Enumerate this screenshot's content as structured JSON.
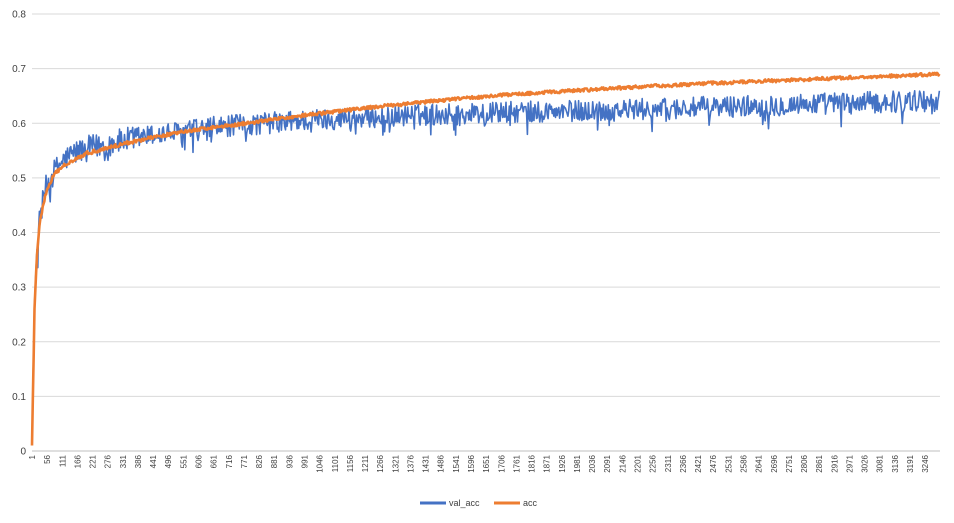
{
  "chart_data": {
    "type": "line",
    "title": "",
    "xlabel": "",
    "ylabel": "",
    "ylim": [
      0,
      0.8
    ],
    "yticks": [
      "0",
      "0.1",
      "0.2",
      "0.3",
      "0.4",
      "0.5",
      "0.6",
      "0.7",
      "0.8"
    ],
    "x_range": [
      1,
      3300
    ],
    "x_tick_start": 1,
    "x_tick_step": 55,
    "grid": "horizontal",
    "legend_position": "bottom",
    "series": [
      {
        "name": "val_acc",
        "color": "#4472C4",
        "x": [
          1,
          5,
          10,
          20,
          30,
          50,
          80,
          110,
          150,
          200,
          260,
          330,
          400,
          480,
          560,
          650,
          750,
          850,
          950,
          1050,
          1150,
          1250,
          1350,
          1450,
          1550,
          1650,
          1750,
          1850,
          1950,
          2050,
          2150,
          2250,
          2350,
          2450,
          2550,
          2650,
          2750,
          2850,
          2950,
          3050,
          3150,
          3250,
          3300
        ],
        "values": [
          0.01,
          0.14,
          0.27,
          0.38,
          0.43,
          0.48,
          0.51,
          0.53,
          0.545,
          0.555,
          0.56,
          0.568,
          0.575,
          0.58,
          0.585,
          0.592,
          0.596,
          0.6,
          0.604,
          0.607,
          0.61,
          0.612,
          0.614,
          0.616,
          0.617,
          0.619,
          0.62,
          0.621,
          0.622,
          0.623,
          0.624,
          0.626,
          0.627,
          0.629,
          0.631,
          0.632,
          0.634,
          0.636,
          0.637,
          0.638,
          0.64,
          0.641,
          0.642
        ],
        "noise_amplitude": 0.02
      },
      {
        "name": "acc",
        "color": "#ED7D31",
        "x": [
          1,
          5,
          10,
          20,
          30,
          50,
          80,
          110,
          150,
          200,
          260,
          330,
          400,
          480,
          560,
          650,
          750,
          850,
          950,
          1050,
          1150,
          1250,
          1350,
          1450,
          1550,
          1650,
          1750,
          1850,
          1950,
          2050,
          2150,
          2250,
          2350,
          2450,
          2550,
          2650,
          2750,
          2850,
          2950,
          3050,
          3150,
          3250,
          3300
        ],
        "values": [
          0.01,
          0.12,
          0.26,
          0.37,
          0.42,
          0.47,
          0.505,
          0.52,
          0.533,
          0.545,
          0.553,
          0.562,
          0.57,
          0.578,
          0.585,
          0.592,
          0.598,
          0.605,
          0.612,
          0.618,
          0.624,
          0.63,
          0.635,
          0.64,
          0.645,
          0.649,
          0.653,
          0.656,
          0.659,
          0.662,
          0.665,
          0.668,
          0.67,
          0.673,
          0.675,
          0.677,
          0.679,
          0.681,
          0.683,
          0.685,
          0.687,
          0.689,
          0.69
        ],
        "noise_amplitude": 0.003
      }
    ]
  }
}
